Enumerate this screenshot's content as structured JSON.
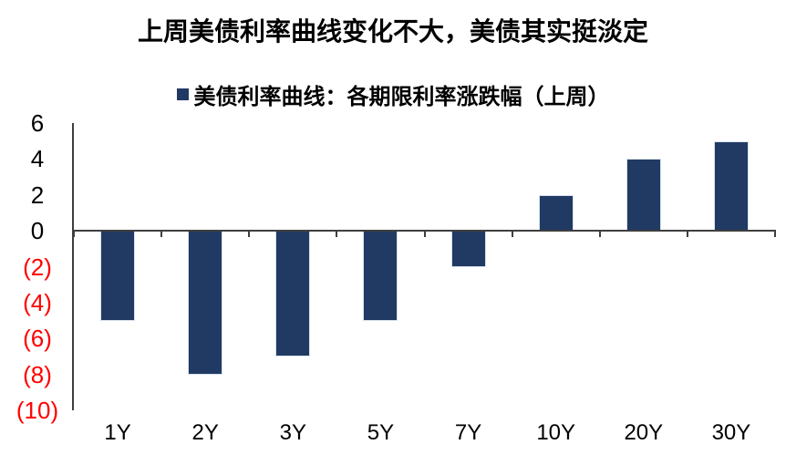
{
  "page": {
    "background": "#ffffff"
  },
  "chart_data": {
    "type": "bar",
    "title": "上周美债利率曲线变化不大，美债其实挺淡定",
    "legend": [
      "美债利率曲线：各期限利率涨跌幅（上周）"
    ],
    "legend_position": "top",
    "categories": [
      "1Y",
      "2Y",
      "3Y",
      "5Y",
      "7Y",
      "10Y",
      "20Y",
      "30Y"
    ],
    "values": [
      -5,
      -8,
      -7,
      -5,
      -2,
      2,
      4,
      5
    ],
    "xlabel": "",
    "ylabel": "",
    "ylim": [
      -10,
      6
    ],
    "ytick_values": [
      6,
      4,
      2,
      0,
      -2,
      -4,
      -6,
      -8,
      -10
    ],
    "ytick_labels": [
      "6",
      "4",
      "2",
      "0",
      "(2)",
      "(4)",
      "(6)",
      "(8)",
      "(10)"
    ],
    "grid": false,
    "colors": {
      "bar": "#213A63",
      "bar_border": "#D9E2F0",
      "axis": "#3F3F3F",
      "positive_tick_label": "#000000",
      "negative_tick_label": "#FF0000",
      "title": "#000000"
    }
  }
}
